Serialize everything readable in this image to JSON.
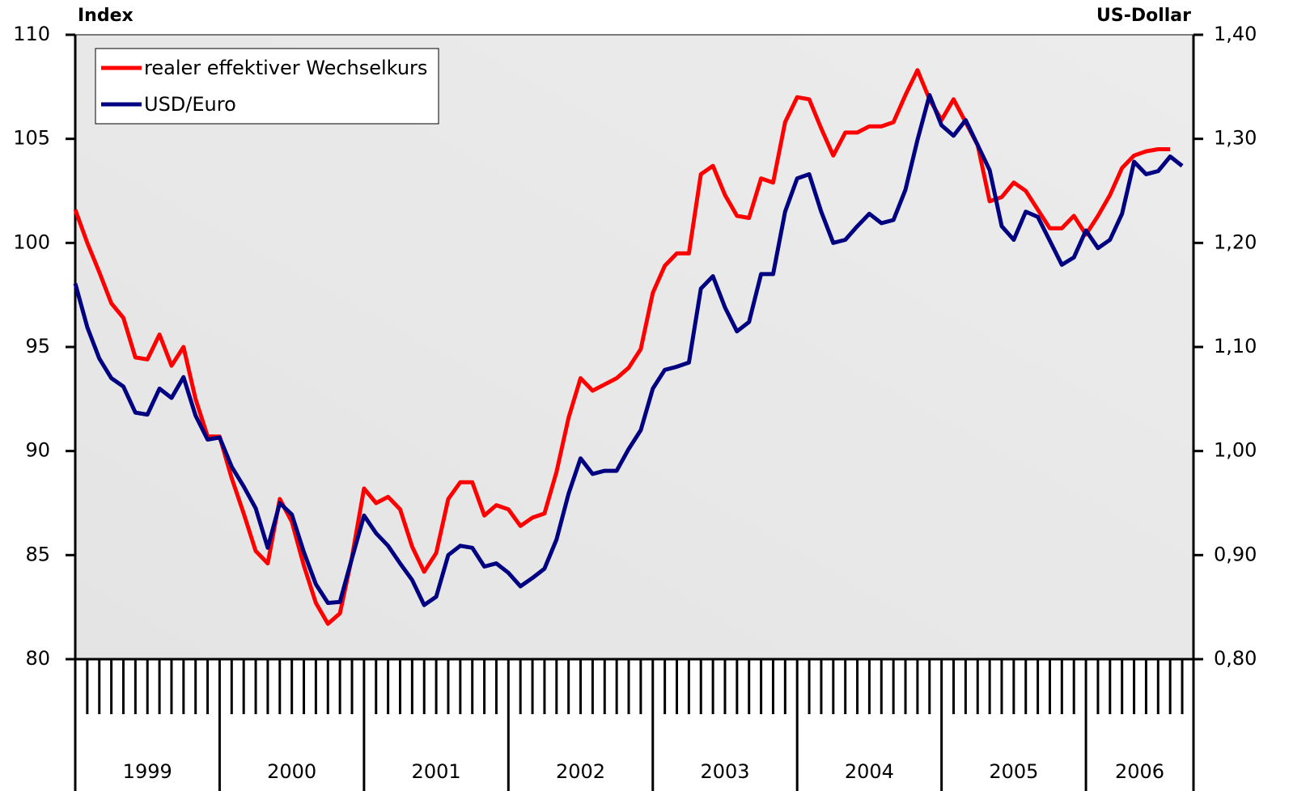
{
  "chart_data": {
    "type": "line",
    "y_label": "Index",
    "y2_label": "US-Dollar",
    "categories": [
      null,
      null,
      null,
      null,
      null,
      null,
      null,
      null,
      null,
      null,
      null,
      null,
      null,
      null,
      null,
      null,
      null,
      null,
      null,
      null,
      null,
      null,
      null,
      null,
      null,
      null,
      null,
      null,
      null,
      null,
      null,
      null,
      null,
      null,
      null,
      null,
      null,
      null,
      null,
      null,
      null,
      null,
      null,
      null,
      null,
      null,
      null,
      null,
      null,
      null,
      null,
      null,
      null,
      null,
      null,
      null,
      null,
      null,
      null,
      null,
      null,
      null,
      null,
      null,
      null,
      null,
      null,
      null,
      null,
      null,
      null,
      null,
      null,
      null,
      null,
      null,
      null,
      null,
      null,
      null,
      null,
      null,
      null,
      null,
      null,
      null,
      null,
      null,
      null,
      null,
      null,
      null,
      null
    ],
    "x_groups": [
      "1999",
      "2000",
      "2001",
      "2002",
      "2003",
      "2004",
      "2005",
      "2006"
    ],
    "ylim": [
      80,
      110
    ],
    "yticks": [
      80,
      85,
      90,
      95,
      100,
      105,
      110
    ],
    "y2lim": [
      0.8,
      1.4
    ],
    "y2ticks": [
      {
        "value": 0.8,
        "label": "0,80"
      },
      {
        "value": 0.9,
        "label": "0,90"
      },
      {
        "value": 1.0,
        "label": "1,00"
      },
      {
        "value": 1.1,
        "label": "1,10"
      },
      {
        "value": 1.2,
        "label": "1,20"
      },
      {
        "value": 1.3,
        "label": "1,30"
      },
      {
        "value": 1.4,
        "label": "1,40"
      }
    ],
    "legend": "top-left",
    "series": [
      {
        "name": "realer effektiver Wechselkurs",
        "color": "#ff0000",
        "values": [
          101.6,
          100.0,
          98.6,
          97.1,
          96.4,
          94.5,
          94.4,
          95.6,
          94.1,
          95.0,
          92.5,
          90.7,
          90.7,
          88.7,
          87.0,
          85.2,
          84.6,
          87.7,
          86.6,
          84.5,
          82.7,
          81.7,
          82.2,
          84.9,
          88.2,
          87.5,
          87.8,
          87.2,
          85.4,
          84.2,
          85.1,
          87.7,
          88.5,
          88.5,
          86.9,
          87.4,
          87.2,
          86.4,
          86.8,
          87.0,
          89.0,
          91.6,
          93.5,
          92.9,
          93.2,
          93.5,
          94.0,
          94.9,
          97.6,
          98.9,
          99.5,
          99.5,
          103.3,
          103.7,
          102.3,
          101.3,
          101.2,
          103.1,
          102.9,
          105.8,
          107.0,
          106.9,
          105.5,
          104.2,
          105.3,
          105.3,
          105.6,
          105.6,
          105.8,
          107.1,
          108.3,
          106.9,
          105.9,
          106.9,
          105.8,
          104.7,
          102.0,
          102.2,
          102.9,
          102.5,
          101.6,
          100.7,
          100.7,
          101.3,
          100.4,
          101.3,
          102.3,
          103.6,
          104.2,
          104.4,
          104.5,
          104.5,
          null
        ]
      },
      {
        "name": "USD/Euro",
        "color": "#000080",
        "axis": "y2",
        "values": [
          1.161,
          1.119,
          1.089,
          1.07,
          1.062,
          1.037,
          1.035,
          1.06,
          1.051,
          1.071,
          1.034,
          1.011,
          1.013,
          0.985,
          0.966,
          0.945,
          0.907,
          0.95,
          0.939,
          0.903,
          0.872,
          0.854,
          0.855,
          0.897,
          0.938,
          0.921,
          0.909,
          0.892,
          0.876,
          0.852,
          0.86,
          0.9,
          0.909,
          0.907,
          0.889,
          0.892,
          0.883,
          0.87,
          0.878,
          0.887,
          0.915,
          0.959,
          0.993,
          0.978,
          0.981,
          0.981,
          1.002,
          1.02,
          1.06,
          1.078,
          1.081,
          1.085,
          1.156,
          1.168,
          1.138,
          1.115,
          1.124,
          1.17,
          1.17,
          1.23,
          1.262,
          1.266,
          1.23,
          1.2,
          1.203,
          1.216,
          1.228,
          1.219,
          1.222,
          1.251,
          1.299,
          1.342,
          1.313,
          1.303,
          1.318,
          1.294,
          1.27,
          1.216,
          1.203,
          1.23,
          1.225,
          1.202,
          1.179,
          1.186,
          1.212,
          1.195,
          1.203,
          1.228,
          1.278,
          1.266,
          1.269,
          1.283,
          1.274
        ]
      }
    ]
  }
}
